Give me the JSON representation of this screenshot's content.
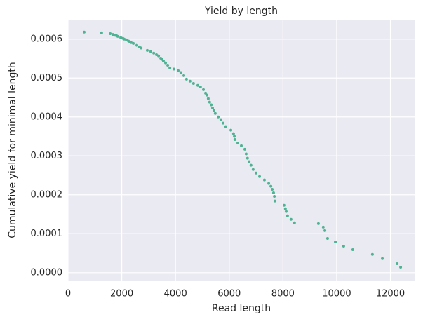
{
  "chart_data": {
    "type": "scatter",
    "title": "Yield by length",
    "xlabel": "Read length",
    "ylabel": "Cumulative yield for minimal length",
    "color": "#4fb393",
    "grid": true,
    "x": [
      600,
      1250,
      1570,
      1670,
      1750,
      1800,
      1850,
      1960,
      2040,
      2090,
      2170,
      2250,
      2300,
      2350,
      2430,
      2560,
      2660,
      2720,
      2950,
      3080,
      3190,
      3290,
      3370,
      3450,
      3500,
      3550,
      3630,
      3710,
      3790,
      3940,
      4100,
      4200,
      4310,
      4410,
      4540,
      4670,
      4830,
      4930,
      5040,
      5120,
      5170,
      5220,
      5270,
      5330,
      5380,
      5430,
      5480,
      5590,
      5690,
      5770,
      5870,
      6060,
      6160,
      6190,
      6210,
      6320,
      6450,
      6580,
      6630,
      6680,
      6740,
      6810,
      6890,
      7000,
      7130,
      7310,
      7470,
      7550,
      7600,
      7650,
      7680,
      7700,
      8040,
      8090,
      8120,
      8170,
      8300,
      8430,
      9320,
      9500,
      9560,
      9660,
      9950,
      10260,
      10600,
      11330,
      11700,
      12250,
      12380
    ],
    "values": [
      0.000618,
      0.000616,
      0.000614,
      0.000612,
      0.00061,
      0.000609,
      0.000607,
      0.000604,
      0.000602,
      0.0006,
      0.000598,
      0.000595,
      0.000593,
      0.000591,
      0.000589,
      0.000584,
      0.00058,
      0.000577,
      0.000571,
      0.000568,
      0.000564,
      0.00056,
      0.000557,
      0.000551,
      0.000548,
      0.000544,
      0.000539,
      0.000533,
      0.000526,
      0.000523,
      0.000519,
      0.000514,
      0.000506,
      0.000497,
      0.000492,
      0.000486,
      0.000481,
      0.000477,
      0.00047,
      0.000461,
      0.000456,
      0.000447,
      0.000438,
      0.000431,
      0.000423,
      0.000416,
      0.000409,
      0.0004,
      0.000393,
      0.000384,
      0.000375,
      0.000366,
      0.000357,
      0.00035,
      0.000342,
      0.000333,
      0.000326,
      0.000317,
      0.000305,
      0.000294,
      0.000285,
      0.000276,
      0.000265,
      0.000256,
      0.000247,
      0.000238,
      0.000229,
      0.000222,
      0.000214,
      0.000205,
      0.000196,
      0.000184,
      0.000173,
      0.000164,
      0.000157,
      0.000146,
      0.000137,
      0.000128,
      0.000126,
      0.000117,
      0.000108,
      8.8e-05,
      7.9e-05,
      6.8e-05,
      5.9e-05,
      4.7e-05,
      3.6e-05,
      2.3e-05,
      1.4e-05
    ],
    "xlim": [
      0,
      12900
    ],
    "xticks": [
      0,
      2000,
      4000,
      6000,
      8000,
      10000,
      12000
    ],
    "ylim": [
      -2.2e-05,
      0.00065
    ],
    "yticks": [
      {
        "value": 0,
        "label": "0.0000"
      },
      {
        "value": 0.0001,
        "label": "0.0001"
      },
      {
        "value": 0.0002,
        "label": "0.0002"
      },
      {
        "value": 0.0003,
        "label": "0.0003"
      },
      {
        "value": 0.0004,
        "label": "0.0004"
      },
      {
        "value": 0.0005,
        "label": "0.0005"
      },
      {
        "value": 0.0006,
        "label": "0.0006"
      }
    ]
  }
}
